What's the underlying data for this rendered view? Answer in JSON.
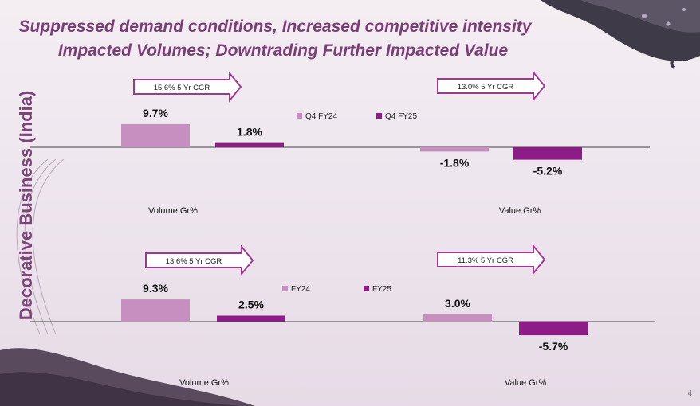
{
  "title": {
    "line1": "Suppressed demand conditions, Increased competitive intensity",
    "line2": "Impacted Volumes; Downtrading Further Impacted Value"
  },
  "side_label": "Decorative Business (India)",
  "page_number": "4",
  "colors": {
    "title": "#7a3d76",
    "light_bar": "#c68fbf",
    "dark_bar": "#8e1c86",
    "arrow_stroke": "#9b3a8f",
    "axis": "#404040"
  },
  "chart_data": [
    {
      "type": "bar",
      "title": "",
      "categories": [
        "Volume Gr%",
        "Value Gr%"
      ],
      "series": [
        {
          "name": "Q4 FY24",
          "values": [
            9.7,
            -1.8
          ]
        },
        {
          "name": "Q4 FY25",
          "values": [
            1.8,
            -5.2
          ]
        }
      ],
      "value_labels": [
        [
          "9.7%",
          "-1.8%"
        ],
        [
          "1.8%",
          "-5.2%"
        ]
      ],
      "cagr_labels": [
        "15.6% 5 Yr CGR",
        "13.0% 5 Yr CGR"
      ],
      "legend": "top-center",
      "grid": false,
      "ylim": [
        -10,
        12
      ]
    },
    {
      "type": "bar",
      "title": "",
      "categories": [
        "Volume Gr%",
        "Value Gr%"
      ],
      "series": [
        {
          "name": "FY24",
          "values": [
            9.3,
            3.0
          ]
        },
        {
          "name": "FY25",
          "values": [
            2.5,
            -5.7
          ]
        }
      ],
      "value_labels": [
        [
          "9.3%",
          "3.0%"
        ],
        [
          "2.5%",
          "-5.7%"
        ]
      ],
      "cagr_labels": [
        "13.6% 5 Yr CGR",
        "11.3% 5 Yr CGR"
      ],
      "legend": "top-center",
      "grid": false,
      "ylim": [
        -10,
        12
      ]
    }
  ]
}
